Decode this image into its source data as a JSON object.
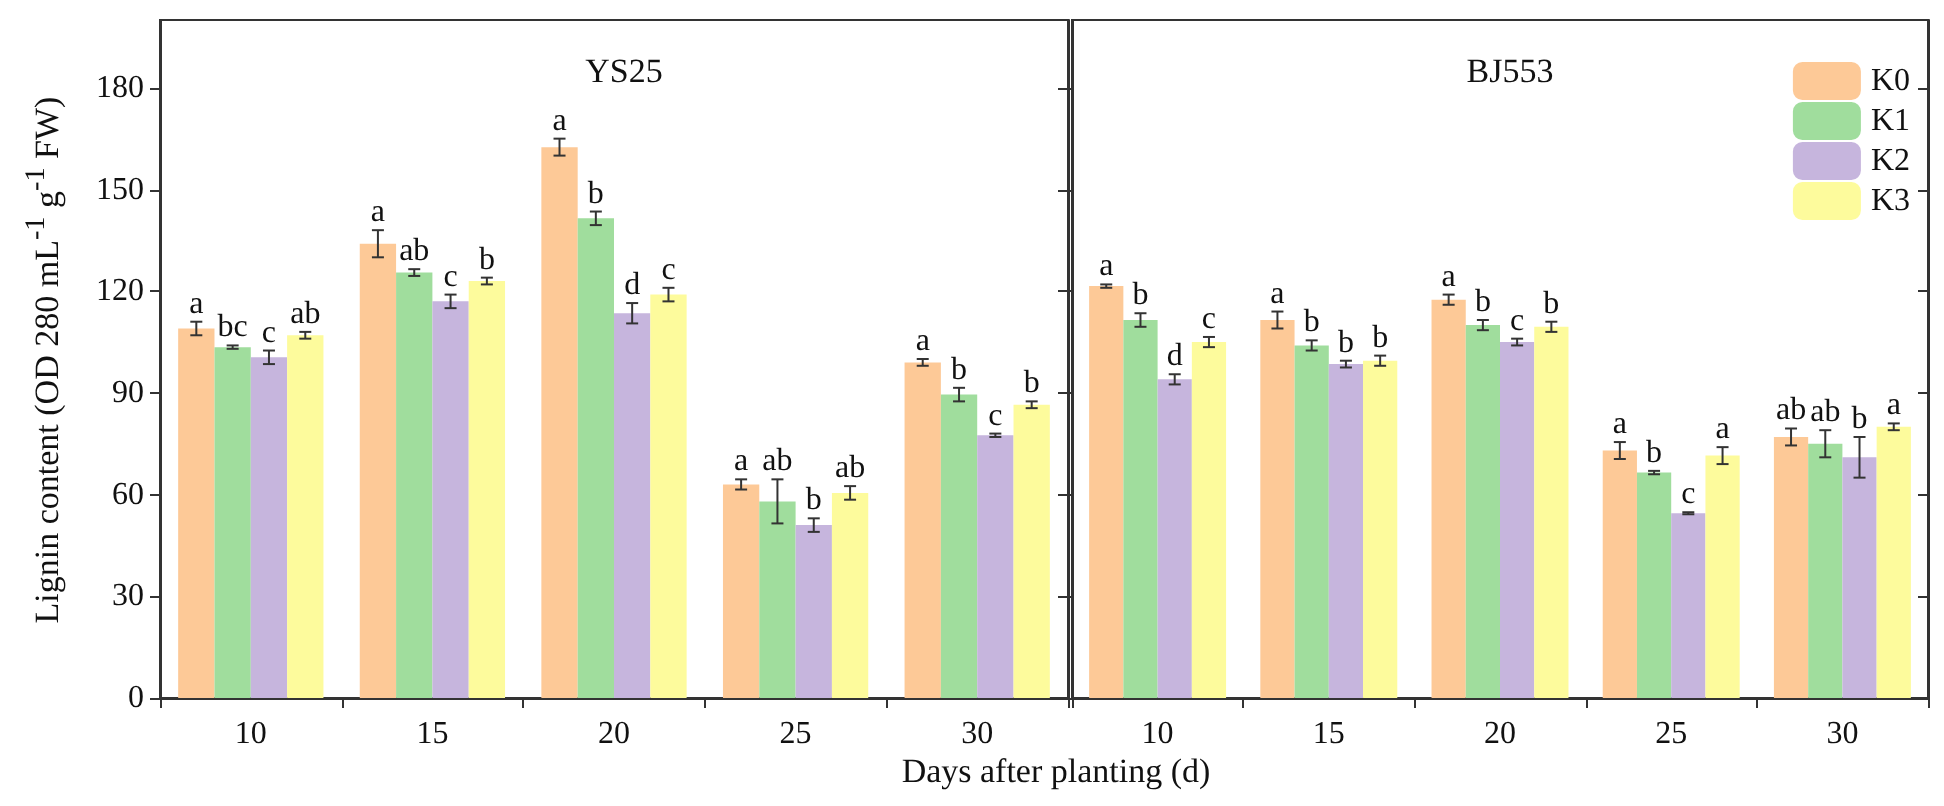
{
  "chart_data": [
    {
      "type": "bar",
      "title": "YS25",
      "xlabel": "Days after planting (d)",
      "ylabel": "Lignin content (OD 280 mL$^{-1}$ g$^{-1}$ FW)",
      "categories": [
        "10",
        "15",
        "20",
        "25",
        "30"
      ],
      "ylim": [
        0,
        200
      ],
      "yticks": [
        0,
        30,
        60,
        90,
        120,
        150,
        180
      ],
      "legend": false,
      "series": [
        {
          "color": "#fdc997",
          "values": [
            109,
            134,
            162.5,
            63,
            99
          ],
          "errors": [
            2,
            4,
            2.5,
            1.5,
            1
          ],
          "value_labels": [
            "a",
            "a",
            "a",
            "a",
            "a"
          ]
        },
        {
          "color": "#a0dd9d",
          "values": [
            103.5,
            125.5,
            141.5,
            58,
            89.5
          ],
          "errors": [
            0.5,
            1,
            2,
            6.5,
            2
          ],
          "value_labels": [
            "bc",
            "ab",
            "b",
            "ab",
            "b"
          ]
        },
        {
          "color": "#c6b5dd",
          "values": [
            100.5,
            117,
            113.5,
            51,
            77.5
          ],
          "errors": [
            2,
            2,
            3,
            2,
            0.5
          ],
          "value_labels": [
            "c",
            "c",
            "d",
            "b",
            "c"
          ]
        },
        {
          "color": "#fdfb9c",
          "values": [
            107,
            123,
            119,
            60.5,
            86.5
          ],
          "errors": [
            1,
            1,
            2,
            2,
            1
          ],
          "value_labels": [
            "ab",
            "b",
            "c",
            "ab",
            "b"
          ]
        }
      ]
    },
    {
      "type": "bar",
      "title": "BJ553",
      "categories": [
        "10",
        "15",
        "20",
        "25",
        "30"
      ],
      "ylim": [
        0,
        200
      ],
      "yticks": [
        0,
        30,
        60,
        90,
        120,
        150,
        180
      ],
      "tick_labels": "x",
      "legend": "top right",
      "series": [
        {
          "name": "K0",
          "color": "#fdc997",
          "values": [
            121.5,
            111.5,
            117.5,
            73,
            77
          ],
          "errors": [
            0.5,
            2.5,
            1.5,
            2.5,
            2.5
          ],
          "value_labels": [
            "a",
            "a",
            "a",
            "a",
            "ab"
          ]
        },
        {
          "name": "K1",
          "color": "#a0dd9d",
          "values": [
            111.5,
            104,
            110,
            66.5,
            75
          ],
          "errors": [
            2,
            1.5,
            1.5,
            0.5,
            4
          ],
          "value_labels": [
            "b",
            "b",
            "b",
            "b",
            "ab"
          ]
        },
        {
          "name": "K2",
          "color": "#c6b5dd",
          "values": [
            94,
            98.5,
            105,
            54.5,
            71
          ],
          "errors": [
            1.5,
            1,
            1,
            0.3,
            6
          ],
          "value_labels": [
            "d",
            "b",
            "c",
            "c",
            "b"
          ]
        },
        {
          "name": "K3",
          "color": "#fdfb9c",
          "values": [
            105,
            99.5,
            109.5,
            71.5,
            80
          ],
          "errors": [
            1.5,
            1.5,
            1.5,
            2.5,
            1
          ],
          "value_labels": [
            "c",
            "b",
            "b",
            "a",
            "a"
          ]
        }
      ]
    }
  ]
}
